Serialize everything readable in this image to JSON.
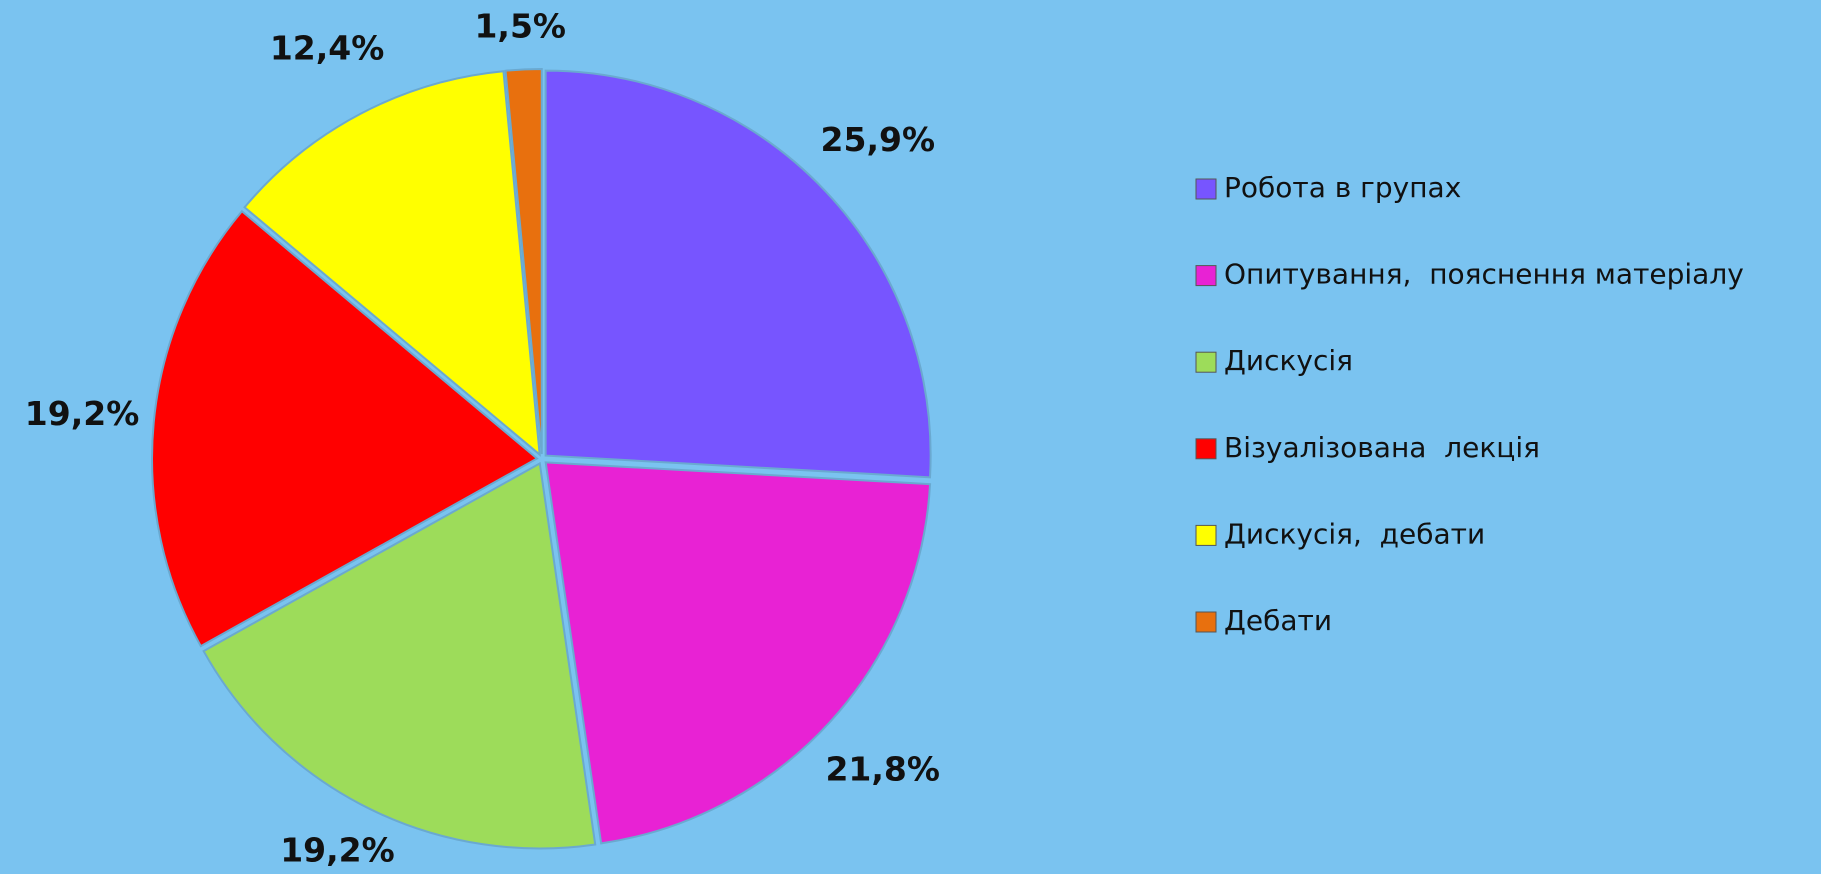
{
  "chart_data": {
    "type": "pie",
    "categories": [
      "Робота в групах",
      "Опитування,  пояснення матеріалу",
      "Дискусія",
      "Візуалізована  лекція",
      "Дискусія,  дебати",
      "Дебати"
    ],
    "values": [
      25.9,
      21.8,
      19.2,
      19.2,
      12.4,
      1.5
    ],
    "value_labels": [
      "25,9%",
      "21,8%",
      "19,2%",
      "19,2%",
      "12,4%",
      "1,5%"
    ],
    "colors": [
      "#7755ff",
      "#e822d4",
      "#9ddc5a",
      "#ff0000",
      "#ffff00",
      "#e8700e"
    ],
    "legend": "right"
  }
}
